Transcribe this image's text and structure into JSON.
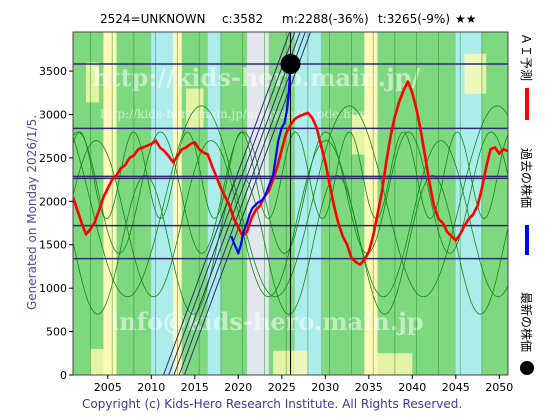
{
  "header": {
    "code_name": "2524=UNKNOWN",
    "current": "c:3582",
    "min_info": "m:2288(-36%)",
    "target_info": "t:3265(-9%)",
    "stars": "★★"
  },
  "side_text": {
    "generated": "Generated on Monday 2026/1/5.",
    "legend_forecast": "ＡＩ予測",
    "legend_past": "過去の株価",
    "legend_latest": "最新の株価"
  },
  "watermarks": {
    "main": "http://kids-hero.main.jp/",
    "small": "http://kids-hero.main.jp/analysis/c/code.html",
    "info": "info@kids-hero.main.jp"
  },
  "footer": {
    "copyright": "Copyright (c) Kids-Hero Research Institute. All Rights Reserved."
  },
  "colors": {
    "forecast": "#ff0000",
    "past": "#0000ff",
    "latest": "#000000",
    "band_green": "#72d672",
    "band_yellow": "#fffab0",
    "band_cyan": "#a5ece9",
    "band_gray": "#e3e6ee",
    "hline": "#2c2c6e",
    "cycle": "#118811"
  },
  "chart_data": {
    "type": "line",
    "xlim": [
      2001,
      2051
    ],
    "ylim": [
      0,
      3950
    ],
    "x_ticks": [
      2005,
      2010,
      2015,
      2020,
      2025,
      2030,
      2035,
      2040,
      2045,
      2050
    ],
    "y_ticks": [
      0,
      500,
      1000,
      1500,
      2000,
      2500,
      3000,
      3500
    ],
    "hlines": [
      3582,
      2840,
      2288,
      2265,
      1720,
      1340
    ],
    "vline_x": 2026,
    "latest_point": {
      "x": 2026,
      "y": 3582
    },
    "series": [
      {
        "name": "ＡＩ予測",
        "color": "#ff0000",
        "points": [
          [
            2001,
            2050
          ],
          [
            2001.5,
            1900
          ],
          [
            2002,
            1750
          ],
          [
            2002.5,
            1620
          ],
          [
            2003,
            1680
          ],
          [
            2003.5,
            1760
          ],
          [
            2004,
            1900
          ],
          [
            2004.5,
            2050
          ],
          [
            2005,
            2150
          ],
          [
            2005.5,
            2250
          ],
          [
            2006,
            2300
          ],
          [
            2006.5,
            2380
          ],
          [
            2007,
            2420
          ],
          [
            2007.5,
            2500
          ],
          [
            2008,
            2530
          ],
          [
            2008.5,
            2600
          ],
          [
            2009,
            2620
          ],
          [
            2009.5,
            2640
          ],
          [
            2010,
            2660
          ],
          [
            2010.5,
            2700
          ],
          [
            2011,
            2620
          ],
          [
            2011.5,
            2580
          ],
          [
            2012,
            2520
          ],
          [
            2012.5,
            2450
          ],
          [
            2013,
            2520
          ],
          [
            2013.5,
            2600
          ],
          [
            2014,
            2620
          ],
          [
            2014.5,
            2660
          ],
          [
            2015,
            2680
          ],
          [
            2015.5,
            2600
          ],
          [
            2016,
            2560
          ],
          [
            2016.5,
            2540
          ],
          [
            2017,
            2400
          ],
          [
            2017.5,
            2280
          ],
          [
            2018,
            2150
          ],
          [
            2018.5,
            2050
          ],
          [
            2019,
            1950
          ],
          [
            2019.5,
            1800
          ],
          [
            2020,
            1700
          ],
          [
            2020.5,
            1600
          ],
          [
            2021,
            1650
          ],
          [
            2021.5,
            1800
          ],
          [
            2022,
            1900
          ],
          [
            2022.5,
            1950
          ],
          [
            2023,
            2050
          ],
          [
            2023.5,
            2120
          ],
          [
            2024,
            2250
          ],
          [
            2024.5,
            2400
          ],
          [
            2025,
            2600
          ],
          [
            2025.5,
            2780
          ],
          [
            2026,
            2880
          ],
          [
            2026.5,
            2950
          ],
          [
            2027,
            2980
          ],
          [
            2027.5,
            3000
          ],
          [
            2028,
            3020
          ],
          [
            2028.5,
            2960
          ],
          [
            2029,
            2850
          ],
          [
            2029.5,
            2650
          ],
          [
            2030,
            2450
          ],
          [
            2030.5,
            2200
          ],
          [
            2031,
            1950
          ],
          [
            2031.5,
            1750
          ],
          [
            2032,
            1600
          ],
          [
            2032.5,
            1500
          ],
          [
            2033,
            1350
          ],
          [
            2033.5,
            1300
          ],
          [
            2034,
            1270
          ],
          [
            2034.5,
            1330
          ],
          [
            2035,
            1420
          ],
          [
            2035.5,
            1600
          ],
          [
            2036,
            1850
          ],
          [
            2036.5,
            2100
          ],
          [
            2037,
            2450
          ],
          [
            2037.5,
            2750
          ],
          [
            2038,
            2980
          ],
          [
            2038.5,
            3150
          ],
          [
            2039,
            3280
          ],
          [
            2039.5,
            3380
          ],
          [
            2040,
            3250
          ],
          [
            2040.5,
            3050
          ],
          [
            2041,
            2800
          ],
          [
            2041.5,
            2500
          ],
          [
            2042,
            2200
          ],
          [
            2042.5,
            1950
          ],
          [
            2043,
            1800
          ],
          [
            2043.5,
            1750
          ],
          [
            2044,
            1650
          ],
          [
            2044.5,
            1600
          ],
          [
            2045,
            1550
          ],
          [
            2045.5,
            1620
          ],
          [
            2046,
            1720
          ],
          [
            2046.5,
            1800
          ],
          [
            2047,
            1850
          ],
          [
            2047.5,
            1950
          ],
          [
            2048,
            2150
          ],
          [
            2048.5,
            2400
          ],
          [
            2049,
            2600
          ],
          [
            2049.5,
            2620
          ],
          [
            2050,
            2550
          ],
          [
            2050.5,
            2600
          ],
          [
            2051,
            2580
          ]
        ]
      },
      {
        "name": "過去の株価",
        "color": "#0000ff",
        "points": [
          [
            2019.2,
            1600
          ],
          [
            2019.5,
            1520
          ],
          [
            2019.8,
            1450
          ],
          [
            2020,
            1400
          ],
          [
            2020.3,
            1500
          ],
          [
            2020.6,
            1650
          ],
          [
            2021,
            1750
          ],
          [
            2021.3,
            1850
          ],
          [
            2021.6,
            1920
          ],
          [
            2022,
            1960
          ],
          [
            2022.3,
            1990
          ],
          [
            2022.7,
            2010
          ],
          [
            2023,
            2050
          ],
          [
            2023.3,
            2120
          ],
          [
            2023.6,
            2200
          ],
          [
            2024,
            2300
          ],
          [
            2024.3,
            2500
          ],
          [
            2024.6,
            2700
          ],
          [
            2025,
            2850
          ],
          [
            2025.3,
            2900
          ],
          [
            2025.6,
            3050
          ],
          [
            2025.8,
            3250
          ],
          [
            2026,
            3582
          ]
        ]
      }
    ]
  }
}
